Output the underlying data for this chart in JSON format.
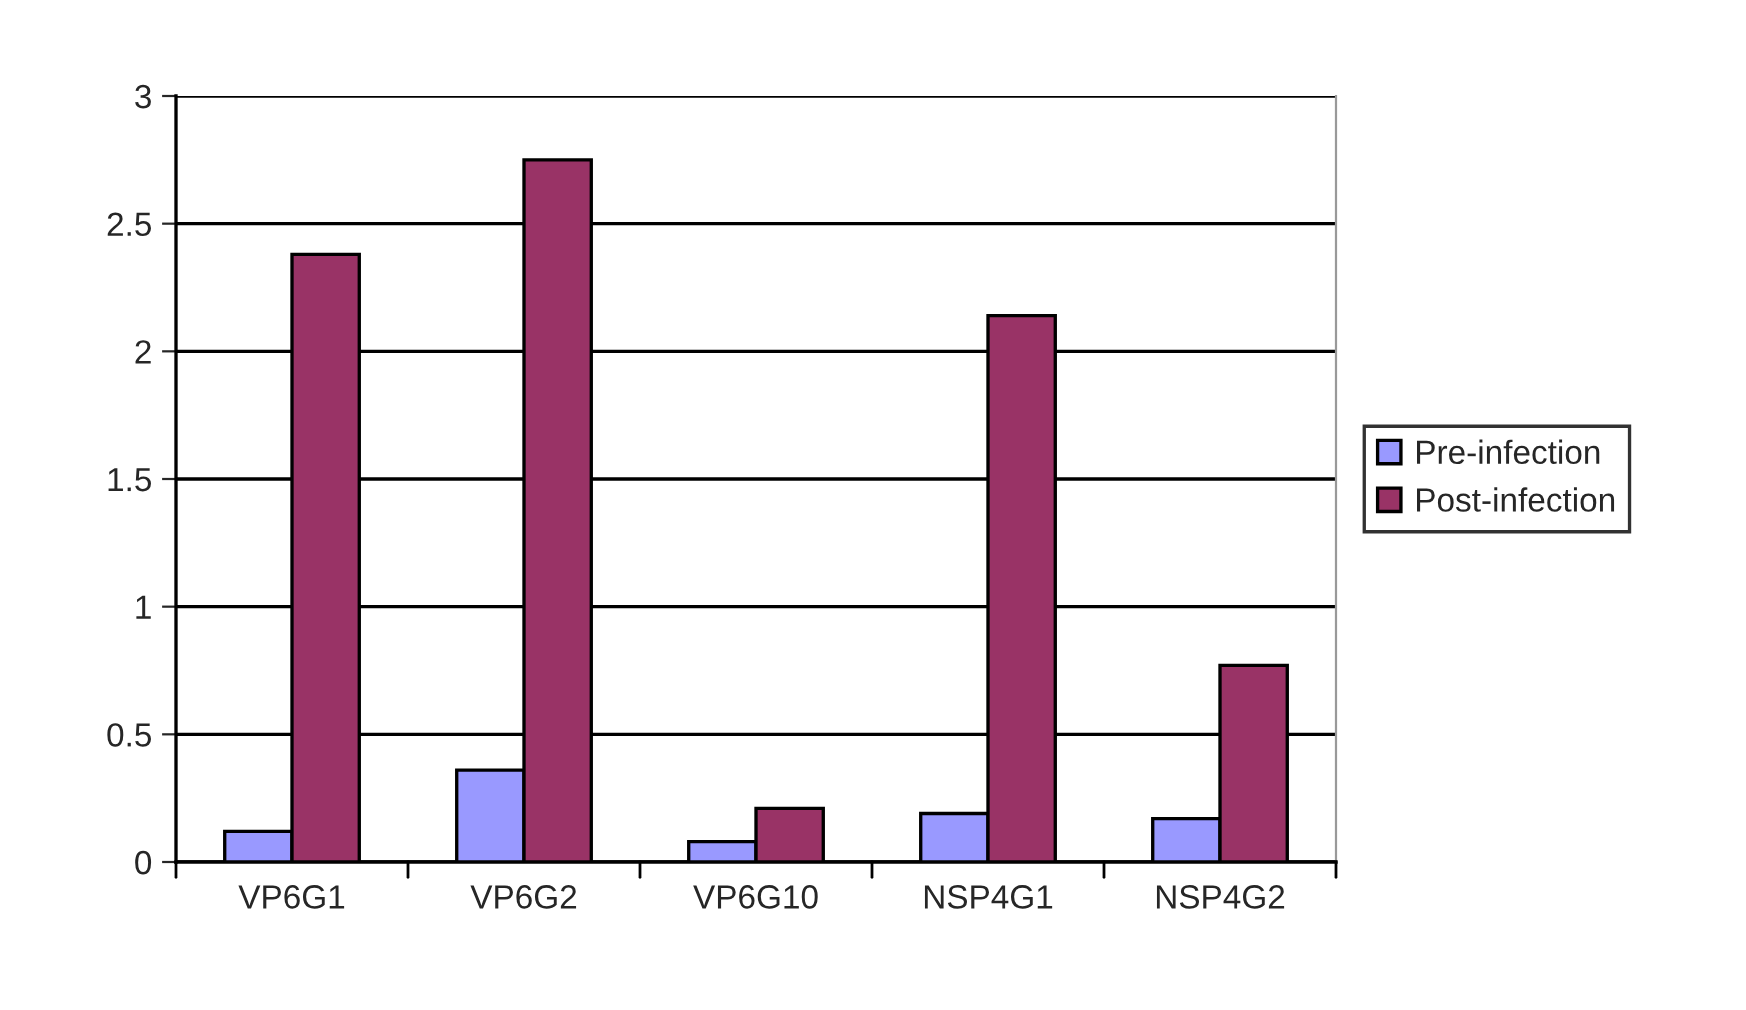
{
  "chart_data": {
    "type": "bar",
    "categories": [
      "VP6G1",
      "VP6G2",
      "VP6G10",
      "NSP4G1",
      "NSP4G2"
    ],
    "series": [
      {
        "name": "Pre-infection",
        "color": "#9999ff",
        "values": [
          0.12,
          0.36,
          0.08,
          0.19,
          0.17
        ]
      },
      {
        "name": "Post-infection",
        "color": "#993366",
        "values": [
          2.38,
          2.75,
          0.21,
          2.14,
          0.77
        ]
      }
    ],
    "ylim": [
      0,
      3
    ],
    "yticks": [
      0,
      0.5,
      1,
      1.5,
      2,
      2.5,
      3
    ],
    "grid": "y",
    "legend": "right"
  }
}
